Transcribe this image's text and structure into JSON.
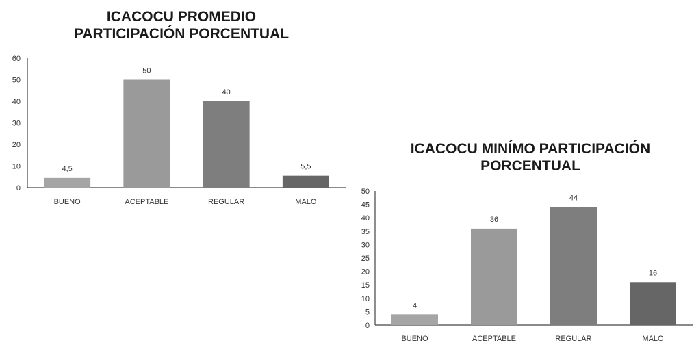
{
  "colors": {
    "bueno": "#a5a5a5",
    "aceptable": "#9a9a9a",
    "regular": "#7e7e7e",
    "malo": "#666666",
    "axis": "#444444",
    "text": "#333333",
    "title": "#1a1a1a"
  },
  "chart_data": [
    {
      "type": "bar",
      "title_lines": [
        "ICACOCU PROMEDIO",
        "PARTICIPACIÓN PORCENTUAL"
      ],
      "categories": [
        "BUENO",
        "ACEPTABLE",
        "REGULAR",
        "MALO"
      ],
      "values": [
        4.5,
        50,
        40,
        5.5
      ],
      "value_labels": [
        "4,5",
        "50",
        "40",
        "5,5"
      ],
      "yticks": [
        "0",
        "10",
        "20",
        "30",
        "40",
        "50",
        "60"
      ],
      "ylim": [
        0,
        60
      ],
      "xlabel": "",
      "ylabel": "",
      "grid": false,
      "legend": "none"
    },
    {
      "type": "bar",
      "title_lines": [
        "ICACOCU MINÍMO  PARTICIPACIÓN",
        "PORCENTUAL"
      ],
      "categories": [
        "BUENO",
        "ACEPTABLE",
        "REGULAR",
        "MALO"
      ],
      "values": [
        4,
        36,
        44,
        16
      ],
      "value_labels": [
        "4",
        "36",
        "44",
        "16"
      ],
      "yticks": [
        "0",
        "5",
        "10",
        "15",
        "20",
        "25",
        "30",
        "35",
        "40",
        "45",
        "50"
      ],
      "ylim": [
        0,
        50
      ],
      "xlabel": "",
      "ylabel": "",
      "grid": false,
      "legend": "none"
    }
  ]
}
